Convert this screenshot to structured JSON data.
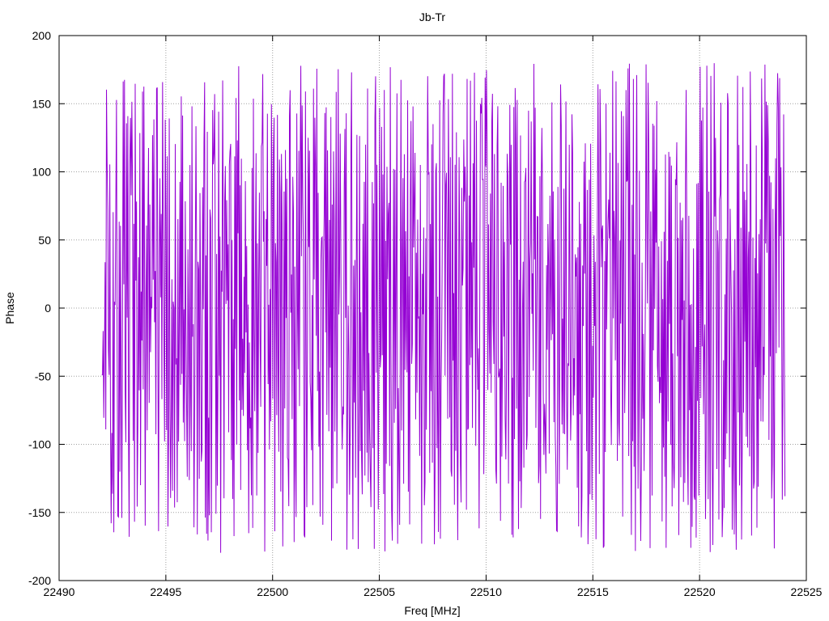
{
  "chart_data": {
    "type": "line",
    "title": "Jb-Tr",
    "xlabel": "Freq [MHz]",
    "ylabel": "Phase",
    "xlim": [
      22490,
      22525
    ],
    "ylim": [
      -200,
      200
    ],
    "xticks": [
      "22490",
      "22495",
      "22500",
      "22505",
      "22510",
      "22515",
      "22520",
      "22525"
    ],
    "yticks": [
      "200",
      "150",
      "100",
      "50",
      "0",
      "-50",
      "-100",
      "-150",
      "-200"
    ],
    "grid": true,
    "legend": "none",
    "line_color": "#9400d3",
    "series": [
      {
        "x_start": 22492.0,
        "x_end": 22524.0,
        "points": 1024,
        "value_range": [
          -180,
          180
        ],
        "pattern": "rapid phase oscillation spanning full -180 to 180 range"
      }
    ]
  }
}
